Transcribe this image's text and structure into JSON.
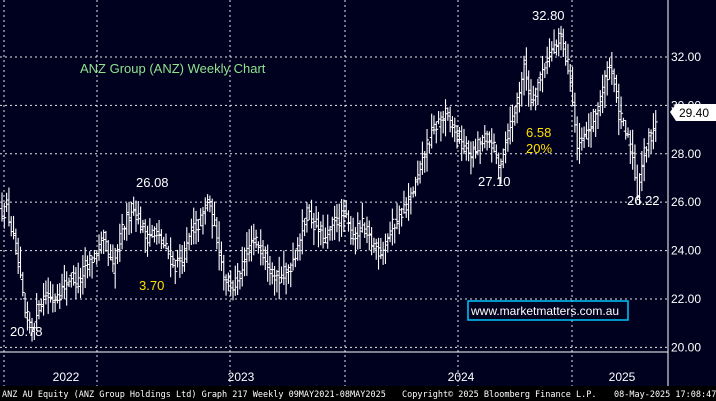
{
  "colors": {
    "background": "#00001f",
    "footer_background": "#000000",
    "grid": "#ffffff",
    "bars": "#ffffff",
    "title": "#8fe38f",
    "annotation_yellow": "#ffe000",
    "annotation_white": "#ffffff",
    "watermark_border": "#00c8ff",
    "last_price_box": "#ffffff"
  },
  "chart_data": {
    "type": "ohlc",
    "title": "ANZ Group (ANZ) Weekly Chart",
    "frequency": "weekly",
    "xlabel": "",
    "ylabel": "",
    "x_tick_labels": [
      "2022",
      "2023",
      "2024",
      "2025"
    ],
    "y_ticks": [
      "20.00",
      "22.00",
      "24.00",
      "26.00",
      "28.00",
      "30.00",
      "32.00"
    ],
    "ylim": [
      19.5,
      34.0
    ],
    "y_axis_position": "right",
    "grid": true,
    "last_price": "29.40",
    "watermark": "www.marketmatters.com.au",
    "annotations": [
      {
        "text": "20.78",
        "color": "white",
        "near": "2021 low"
      },
      {
        "text": "26.08",
        "color": "white",
        "near": "2022 high"
      },
      {
        "text": "3.70",
        "color": "yellow",
        "near": "2022 pullback"
      },
      {
        "text": "27.10",
        "color": "white",
        "near": "2024 low"
      },
      {
        "text": "6.58",
        "color": "yellow",
        "near": "2024-2025 pullback"
      },
      {
        "text": "20%",
        "color": "yellow",
        "near": "2024-2025 pullback"
      },
      {
        "text": "32.80",
        "color": "white",
        "near": "2024 high"
      },
      {
        "text": "26.22",
        "color": "white",
        "near": "2025 low"
      }
    ],
    "price_path": [
      [
        0,
        25.6
      ],
      [
        2,
        25.8
      ],
      [
        6,
        24.0
      ],
      [
        10,
        21.3
      ],
      [
        13,
        20.78
      ],
      [
        16,
        21.8
      ],
      [
        19,
        22.2
      ],
      [
        22,
        22.0
      ],
      [
        26,
        22.4
      ],
      [
        30,
        23.0
      ],
      [
        33,
        22.6
      ],
      [
        36,
        23.3
      ],
      [
        40,
        23.8
      ],
      [
        44,
        24.4
      ],
      [
        48,
        23.2
      ],
      [
        52,
        24.8
      ],
      [
        56,
        25.8
      ],
      [
        58,
        25.6
      ],
      [
        62,
        24.6
      ],
      [
        66,
        24.8
      ],
      [
        70,
        24.2
      ],
      [
        75,
        23.4
      ],
      [
        79,
        23.8
      ],
      [
        82,
        24.8
      ],
      [
        86,
        25.2
      ],
      [
        89,
        26.08
      ],
      [
        93,
        24.6
      ],
      [
        96,
        23.0
      ],
      [
        100,
        22.5
      ],
      [
        104,
        23.2
      ],
      [
        108,
        24.4
      ],
      [
        112,
        24.2
      ],
      [
        116,
        23.4
      ],
      [
        120,
        22.8
      ],
      [
        124,
        23.2
      ],
      [
        128,
        24.2
      ],
      [
        132,
        25.6
      ],
      [
        136,
        25.0
      ],
      [
        140,
        24.4
      ],
      [
        144,
        25.2
      ],
      [
        148,
        25.4
      ],
      [
        152,
        24.6
      ],
      [
        156,
        25.0
      ],
      [
        160,
        24.3
      ],
      [
        164,
        24.0
      ],
      [
        168,
        24.8
      ],
      [
        172,
        25.5
      ],
      [
        176,
        26.0
      ],
      [
        180,
        27.0
      ],
      [
        184,
        28.4
      ],
      [
        188,
        29.2
      ],
      [
        192,
        29.6
      ],
      [
        196,
        29.0
      ],
      [
        200,
        28.2
      ],
      [
        204,
        28.0
      ],
      [
        208,
        28.6
      ],
      [
        212,
        28.5
      ],
      [
        215,
        27.4
      ],
      [
        218,
        28.6
      ],
      [
        222,
        29.8
      ],
      [
        226,
        31.6
      ],
      [
        229,
        30.2
      ],
      [
        233,
        31.2
      ],
      [
        236,
        32.0
      ],
      [
        240,
        32.5
      ],
      [
        242,
        32.8
      ],
      [
        246,
        31.2
      ],
      [
        249,
        28.2
      ],
      [
        252,
        28.6
      ],
      [
        256,
        29.4
      ],
      [
        259,
        30.2
      ],
      [
        262,
        31.4
      ],
      [
        264,
        31.6
      ],
      [
        267,
        29.6
      ],
      [
        270,
        28.8
      ],
      [
        273,
        28.0
      ],
      [
        275,
        26.4
      ],
      [
        277,
        27.6
      ],
      [
        280,
        28.6
      ],
      [
        283,
        29.4
      ]
    ]
  },
  "footer": {
    "left": "ANZ AU Equity (ANZ Group Holdings Ltd) Graph 217  Weekly 09MAY2021-08MAY2025",
    "center": "Copyright© 2025 Bloomberg Finance L.P.",
    "right": "08-May-2025 17:08:47"
  }
}
